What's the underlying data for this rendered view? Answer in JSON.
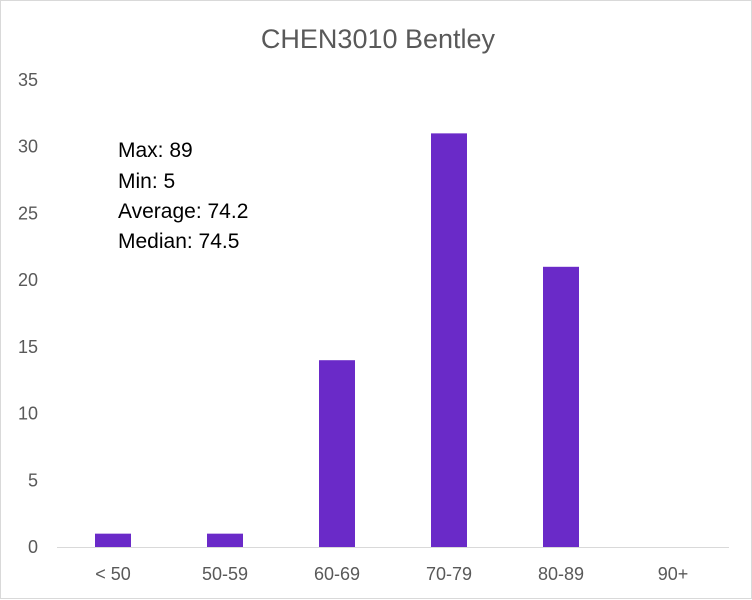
{
  "chart_data": {
    "type": "bar",
    "title": "CHEN3010 Bentley",
    "categories": [
      "< 50",
      "50-59",
      "60-69",
      "70-79",
      "80-89",
      "90+"
    ],
    "values": [
      1,
      1,
      14,
      31,
      21,
      0
    ],
    "yticks": [
      "0",
      "5",
      "10",
      "15",
      "20",
      "25",
      "30",
      "35"
    ],
    "ylim": [
      0,
      35
    ],
    "grid": false,
    "annotations": [
      "Max: 89",
      "Min: 5",
      "Average: 74.2",
      "Median: 74.5"
    ],
    "bar_color": "#6a2ac8"
  }
}
